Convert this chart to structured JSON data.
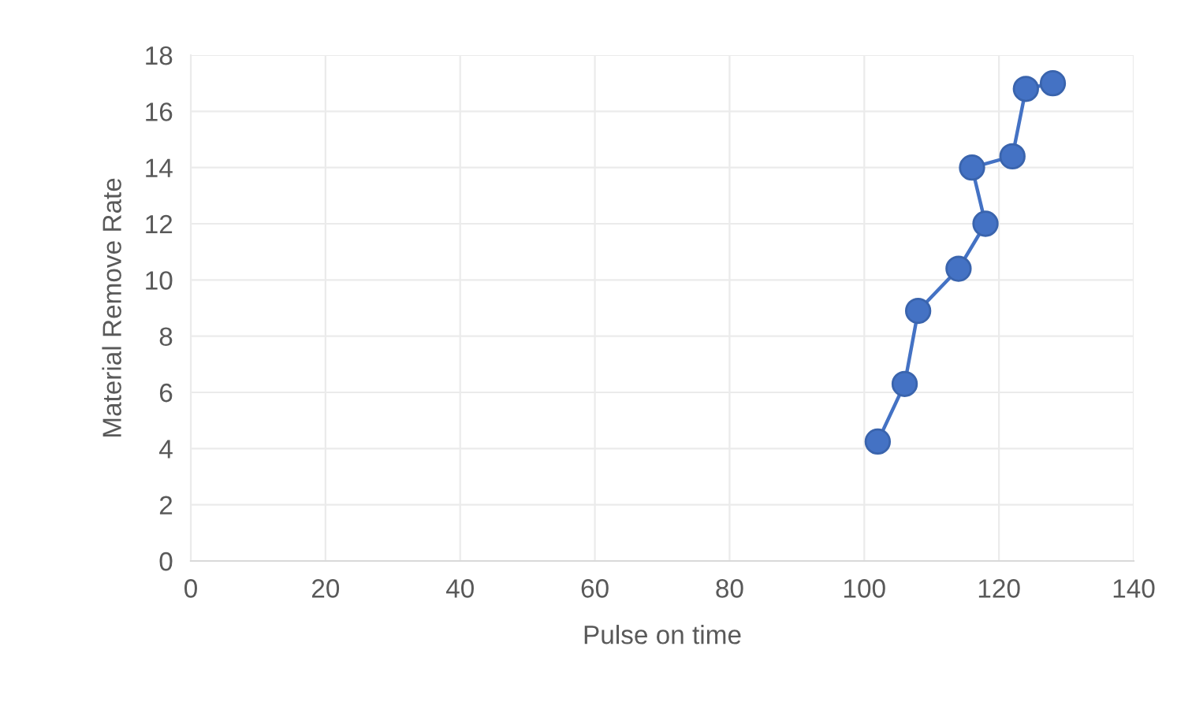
{
  "chart_data": {
    "type": "line",
    "xlabel": "Pulse on time",
    "ylabel": "Material Remove Rate",
    "series": [
      {
        "color": "#4472c4",
        "x": [
          102,
          106,
          108,
          114,
          118,
          116,
          122,
          124,
          128
        ],
        "values": [
          4.25,
          6.3,
          8.9,
          10.4,
          12.0,
          14.0,
          14.4,
          16.8,
          17.0
        ]
      }
    ],
    "xlim": [
      0,
      140
    ],
    "xticks": [
      0,
      20,
      40,
      60,
      80,
      100,
      120,
      140
    ],
    "ylim": [
      0,
      18
    ],
    "yticks": [
      0,
      2,
      4,
      6,
      8,
      10,
      12,
      14,
      16,
      18
    ],
    "grid": true,
    "marker": "circle",
    "line_style": "solid"
  }
}
